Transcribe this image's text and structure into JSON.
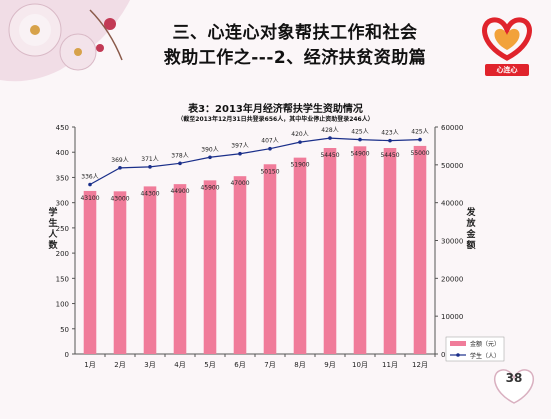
{
  "slide": {
    "title_line1": "三、心连心对象帮扶工作和社会",
    "title_line2": "救助工作之---2、经济扶贫资助篇",
    "logo_text": "心连心",
    "page_number": "38",
    "colors": {
      "background": "#fbf6f8",
      "bar": "#f07c9a",
      "line": "#1a2f8a",
      "logo_red": "#e0232c"
    }
  },
  "chart_data": {
    "type": "bar",
    "title": "表3：2013年月经济帮扶学生资助情况",
    "subtitle": "（截至2013年12月31日共登录656人，其中毕业停止资助登录246人）",
    "categories": [
      "1月",
      "2月",
      "3月",
      "4月",
      "5月",
      "6月",
      "7月",
      "8月",
      "9月",
      "10月",
      "11月",
      "12月"
    ],
    "left_axis": {
      "label": "学生人数",
      "ylim": [
        0,
        450
      ],
      "ticks": [
        0,
        50,
        100,
        150,
        200,
        250,
        300,
        350,
        400,
        450
      ]
    },
    "right_axis": {
      "label": "发放金额",
      "ylim": [
        0,
        60000
      ],
      "ticks": [
        0,
        10000,
        20000,
        30000,
        40000,
        50000,
        60000
      ]
    },
    "series": [
      {
        "name": "金额（元）",
        "type": "bar",
        "axis": "right",
        "values": [
          43100,
          43000,
          44300,
          44900,
          45900,
          47000,
          50150,
          51900,
          54450,
          54900,
          54450,
          55000
        ],
        "labels": [
          "43100",
          "43000",
          "44300",
          "44900",
          "45900",
          "47000",
          "50150",
          "51900",
          "54450",
          "54900",
          "54450",
          "55000"
        ]
      },
      {
        "name": "学生（人）",
        "type": "line",
        "axis": "left",
        "values": [
          336,
          369,
          371,
          378,
          390,
          397,
          407,
          420,
          428,
          425,
          423,
          425
        ],
        "labels": [
          "336人",
          "369人",
          "371人",
          "378人",
          "390人",
          "397人",
          "407人",
          "420人",
          "428人",
          "425人",
          "423人",
          "425人"
        ]
      }
    ],
    "legend_position": "bottom-right",
    "grid": false
  }
}
